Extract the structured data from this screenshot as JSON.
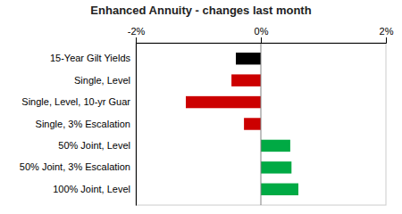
{
  "chart_data": {
    "type": "bar",
    "orientation": "horizontal",
    "title": "Enhanced Annuity - changes last month",
    "categories": [
      "15-Year Gilt Yields",
      "Single, Level",
      "Single, Level, 10-yr Guar",
      "Single, 3% Escalation",
      "50% Joint, Level",
      "50% Joint, 3% Escalation",
      "100% Joint, Level"
    ],
    "values": [
      -0.4,
      -0.47,
      -1.2,
      -0.27,
      0.47,
      0.49,
      0.6
    ],
    "colors": [
      "#000000",
      "#cc0000",
      "#cc0000",
      "#cc0000",
      "#00aa44",
      "#00aa44",
      "#00aa44"
    ],
    "xlim": [
      -2.0,
      2.0
    ],
    "xticks": [
      {
        "value": -2,
        "label": "-2%"
      },
      {
        "value": 0,
        "label": "0%"
      },
      {
        "value": 2,
        "label": "2%"
      }
    ],
    "grid": false
  }
}
